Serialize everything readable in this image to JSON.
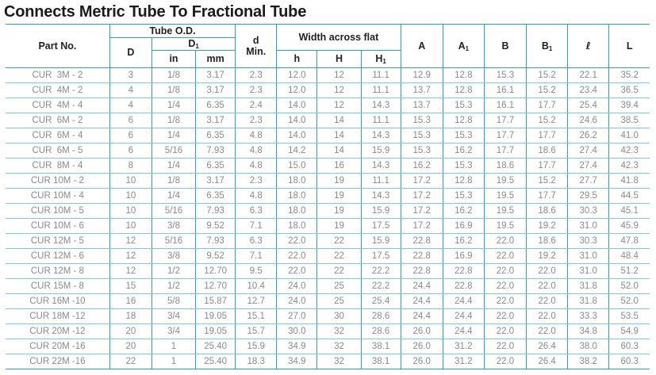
{
  "title": "Connects Metric Tube To Fractional Tube",
  "colors": {
    "border_strong": "#2b9fd4",
    "border_light": "#7cc8e8",
    "title_text": "#1b1b1b",
    "header_text": "#222222",
    "data_text": "#8b8b8b"
  },
  "table": {
    "headers": {
      "part_no": "Part No.",
      "tube_od": "Tube O.D.",
      "d": "D",
      "d1": {
        "base": "D",
        "sub": "1"
      },
      "in_label": "in",
      "mm_label": "mm",
      "d_min": {
        "line1": "d",
        "line2": "Min."
      },
      "width_across_flat": "Width across flat",
      "h_small": "h",
      "h_cap": "H",
      "h1": {
        "base": "H",
        "sub": "1"
      },
      "a": "A",
      "a1": {
        "base": "A",
        "sub": "1"
      },
      "b": "B",
      "b1": {
        "base": "B",
        "sub": "1"
      },
      "ell": "ℓ",
      "l_cap": "L"
    },
    "column_keys": [
      "part_no",
      "D",
      "D1_in",
      "D1_mm",
      "d_min",
      "h",
      "H",
      "H1",
      "A",
      "A1",
      "B",
      "B1",
      "l",
      "L"
    ],
    "rows": [
      [
        "CUR  3M - 2",
        "3",
        "1/8",
        "3.17",
        "2.3",
        "12.0",
        "12",
        "11.1",
        "12.9",
        "12.8",
        "15.3",
        "15.2",
        "22.1",
        "35.2"
      ],
      [
        "CUR  4M - 2",
        "4",
        "1/8",
        "3.17",
        "2.3",
        "12.0",
        "12",
        "11.1",
        "13.7",
        "12.8",
        "16.1",
        "15.2",
        "23.4",
        "36.5"
      ],
      [
        "CUR  4M - 4",
        "4",
        "1/4",
        "6.35",
        "2.4",
        "14.0",
        "12",
        "14.3",
        "13.7",
        "15.3",
        "16.1",
        "17.7",
        "25.4",
        "39.4"
      ],
      [
        "CUR  6M - 2",
        "6",
        "1/8",
        "3.17",
        "2.3",
        "14.0",
        "14",
        "11.1",
        "15.3",
        "12.8",
        "17.7",
        "15.2",
        "24.6",
        "38.5"
      ],
      [
        "CUR  6M - 4",
        "6",
        "1/4",
        "6.35",
        "4.8",
        "14.0",
        "14",
        "14.3",
        "15.3",
        "15.3",
        "17.7",
        "17.7",
        "26.2",
        "41.0"
      ],
      [
        "CUR  6M - 5",
        "6",
        "5/16",
        "7.93",
        "4.8",
        "14.2",
        "14",
        "15.9",
        "15.3",
        "16.2",
        "17.7",
        "18.6",
        "27.4",
        "42.3"
      ],
      [
        "CUR  8M - 4",
        "8",
        "1/4",
        "6.35",
        "4.8",
        "15.0",
        "16",
        "14.3",
        "16.2",
        "15.3",
        "18.6",
        "17.7",
        "27.4",
        "42.3"
      ],
      [
        "CUR 10M - 2",
        "10",
        "1/8",
        "3.17",
        "2.3",
        "18.0",
        "19",
        "11.1",
        "17.2",
        "12.8",
        "19.5",
        "15.2",
        "27.7",
        "41.8"
      ],
      [
        "CUR 10M - 4",
        "10",
        "1/4",
        "6.35",
        "4.8",
        "18.0",
        "19",
        "14.3",
        "17.2",
        "15.3",
        "19.5",
        "17.7",
        "29.5",
        "44.5"
      ],
      [
        "CUR 10M - 5",
        "10",
        "5/16",
        "7.93",
        "6.3",
        "18.0",
        "19",
        "15.9",
        "17.2",
        "16.2",
        "19.5",
        "18.6",
        "30.3",
        "45.1"
      ],
      [
        "CUR 10M - 6",
        "10",
        "3/8",
        "9.52",
        "7.1",
        "18.0",
        "19",
        "17.5",
        "17.2",
        "16.9",
        "19.5",
        "19.2",
        "31.0",
        "45.9"
      ],
      [
        "CUR 12M - 5",
        "12",
        "5/16",
        "7.93",
        "6.3",
        "22.0",
        "22",
        "15.9",
        "22.8",
        "16.2",
        "22.0",
        "18.6",
        "30.3",
        "47.8"
      ],
      [
        "CUR 12M - 6",
        "12",
        "3/8",
        "9.52",
        "7.1",
        "22.0",
        "22",
        "17.5",
        "22.8",
        "16.9",
        "22.0",
        "19.2",
        "31.0",
        "48.4"
      ],
      [
        "CUR 12M - 8",
        "12",
        "1/2",
        "12.70",
        "9.5",
        "22.0",
        "22",
        "22.2",
        "22.8",
        "22.8",
        "22.0",
        "22.0",
        "31.0",
        "51.2"
      ],
      [
        "CUR 15M - 8",
        "15",
        "1/2",
        "12.70",
        "10.4",
        "24.0",
        "25",
        "22.2",
        "24.4",
        "22.8",
        "22.0",
        "22.0",
        "31.8",
        "52.0"
      ],
      [
        "CUR 16M -10",
        "16",
        "5/8",
        "15.87",
        "12.7",
        "24.0",
        "25",
        "25.4",
        "24.4",
        "24.4",
        "22.0",
        "22.0",
        "31.8",
        "52.0"
      ],
      [
        "CUR 18M -12",
        "18",
        "3/4",
        "19.05",
        "15.1",
        "27.0",
        "30",
        "28.6",
        "24.4",
        "24.4",
        "22.0",
        "22.0",
        "33.3",
        "53.5"
      ],
      [
        "CUR 20M -12",
        "20",
        "3/4",
        "19.05",
        "15.7",
        "30.0",
        "32",
        "28.6",
        "26.0",
        "24.4",
        "22.0",
        "22.0",
        "34.8",
        "54.9"
      ],
      [
        "CUR 20M -16",
        "20",
        "1",
        "25.40",
        "15.9",
        "34.9",
        "32",
        "38.1",
        "26.0",
        "31.2",
        "22.0",
        "26.4",
        "38.0",
        "60.3"
      ],
      [
        "CUR 22M -16",
        "22",
        "1",
        "25.40",
        "18.3",
        "34.9",
        "32",
        "38.1",
        "26.0",
        "31.2",
        "22.0",
        "26.4",
        "38.2",
        "60.3"
      ]
    ]
  }
}
